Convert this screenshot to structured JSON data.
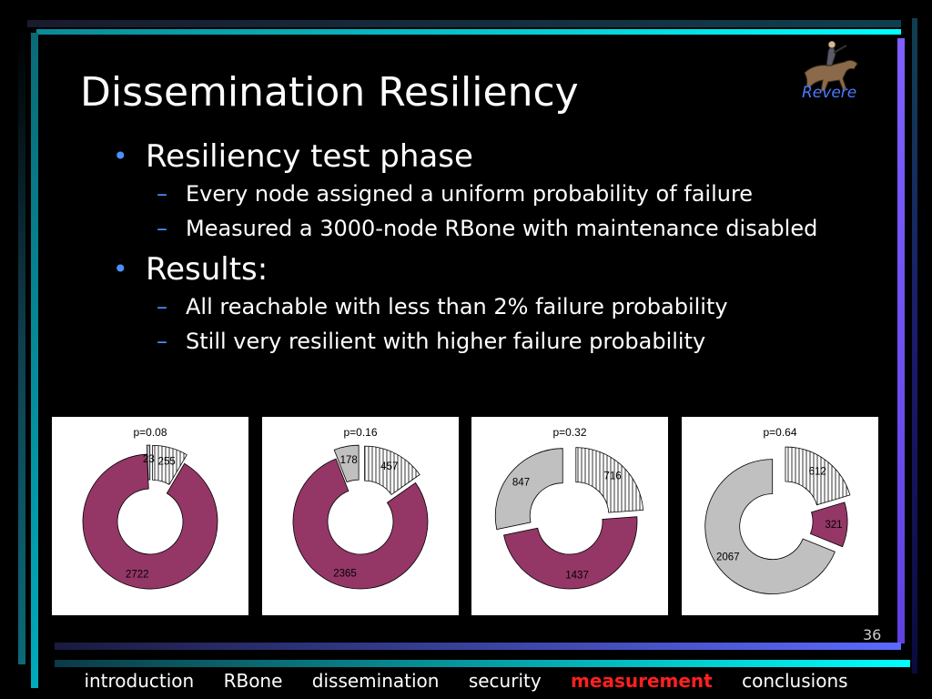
{
  "slide": {
    "title": "Dissemination Resiliency",
    "logo_text": "Revere",
    "page_number": "36",
    "bullets": [
      {
        "text": "Resiliency test phase",
        "sub": [
          "Every node assigned a uniform probability of failure",
          "Measured a 3000-node RBone with maintenance disabled"
        ]
      },
      {
        "text": "Results:",
        "sub": [
          "All reachable with less than 2% failure probability",
          "Still very resilient with higher failure probability"
        ]
      }
    ]
  },
  "colors": {
    "reachable": "#943766",
    "unreachable": "#c0c0c0",
    "failed_fill": "#ffffff",
    "active_nav": "#ff2020",
    "bullet": "#4a90ff"
  },
  "nav": {
    "items": [
      "introduction",
      "RBone",
      "dissemination",
      "security",
      "measurement",
      "conclusions"
    ],
    "active_index": 4
  },
  "chart_data": [
    {
      "type": "pie",
      "title": "p=0.08",
      "slices": [
        {
          "label": "255",
          "value": 255,
          "kind": "failed"
        },
        {
          "label": "2722",
          "value": 2722,
          "kind": "reachable"
        },
        {
          "label": "23",
          "value": 23,
          "kind": "unreachable"
        }
      ]
    },
    {
      "type": "pie",
      "title": "p=0.16",
      "slices": [
        {
          "label": "457",
          "value": 457,
          "kind": "failed"
        },
        {
          "label": "2365",
          "value": 2365,
          "kind": "reachable"
        },
        {
          "label": "178",
          "value": 178,
          "kind": "unreachable"
        }
      ]
    },
    {
      "type": "pie",
      "title": "p=0.32",
      "slices": [
        {
          "label": "716",
          "value": 716,
          "kind": "failed"
        },
        {
          "label": "1437",
          "value": 1437,
          "kind": "reachable"
        },
        {
          "label": "847",
          "value": 847,
          "kind": "unreachable"
        }
      ]
    },
    {
      "type": "pie",
      "title": "p=0.64",
      "slices": [
        {
          "label": "612",
          "value": 612,
          "kind": "failed"
        },
        {
          "label": "321",
          "value": 321,
          "kind": "reachable"
        },
        {
          "label": "2067",
          "value": 2067,
          "kind": "unreachable"
        }
      ]
    }
  ]
}
